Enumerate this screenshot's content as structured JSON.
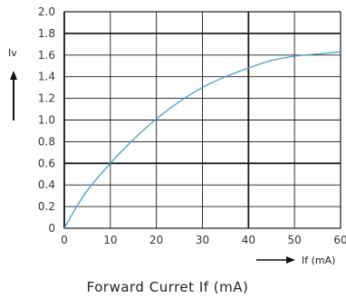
{
  "chart_data": {
    "type": "line",
    "xlabel": "Forward Curret If (mA)",
    "x_axis_arrow_label": "If (mA)",
    "ylabel": "Iv",
    "xlim": [
      0,
      60
    ],
    "ylim": [
      0,
      2.0
    ],
    "x_ticks": [
      "0",
      "10",
      "20",
      "30",
      "40",
      "50",
      "60"
    ],
    "y_ticks": [
      "0",
      "0.2",
      "0.4",
      "0.6",
      "0.8",
      "1.0",
      "1.2",
      "1.4",
      "1.6",
      "1.8",
      "2.0"
    ],
    "grid": true,
    "series": [
      {
        "color": "#4a9fd0",
        "x": [
          0,
          2,
          5,
          10,
          15,
          20,
          25,
          30,
          35,
          40,
          45,
          50,
          55,
          60
        ],
        "y": [
          0,
          0.15,
          0.35,
          0.6,
          0.82,
          1.01,
          1.17,
          1.3,
          1.4,
          1.48,
          1.55,
          1.59,
          1.61,
          1.63
        ]
      }
    ]
  }
}
